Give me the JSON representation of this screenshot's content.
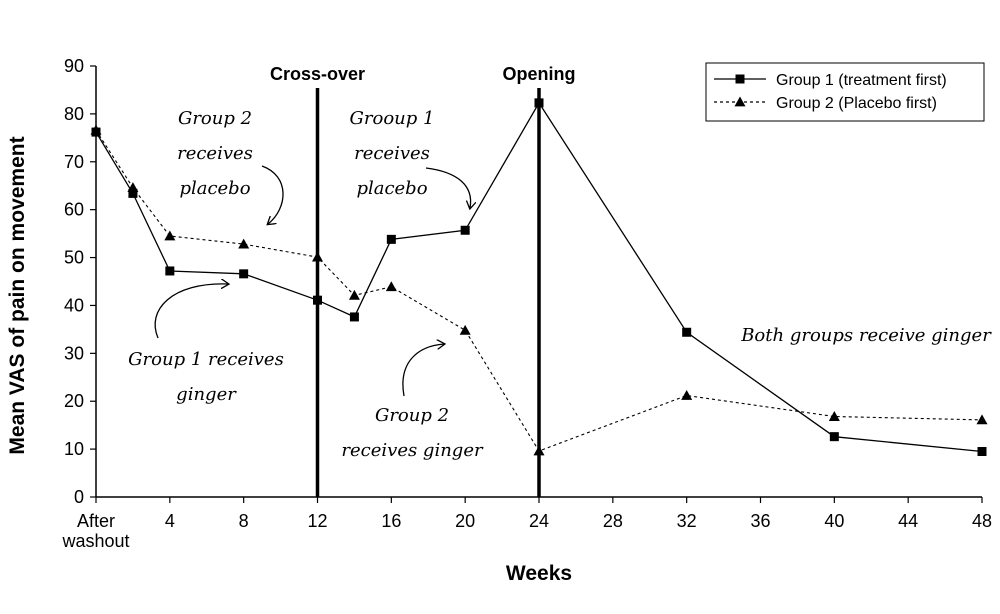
{
  "chart_data": {
    "type": "line",
    "title": "",
    "xlabel": "Weeks",
    "ylabel": "Mean VAS of pain on movement",
    "ylim": [
      0,
      90
    ],
    "yticks": [
      0,
      10,
      20,
      30,
      40,
      50,
      60,
      70,
      80,
      90
    ],
    "xlim": [
      0,
      48
    ],
    "xticks": [
      {
        "value": 0,
        "label": [
          "After",
          "washout"
        ]
      },
      {
        "value": 4,
        "label": [
          "4"
        ]
      },
      {
        "value": 8,
        "label": [
          "8"
        ]
      },
      {
        "value": 12,
        "label": [
          "12"
        ]
      },
      {
        "value": 16,
        "label": [
          "16"
        ]
      },
      {
        "value": 20,
        "label": [
          "20"
        ]
      },
      {
        "value": 24,
        "label": [
          "24"
        ]
      },
      {
        "value": 28,
        "label": [
          "28"
        ]
      },
      {
        "value": 32,
        "label": [
          "32"
        ]
      },
      {
        "value": 36,
        "label": [
          "36"
        ]
      },
      {
        "value": 40,
        "label": [
          "40"
        ]
      },
      {
        "value": 44,
        "label": [
          "44"
        ]
      },
      {
        "value": 48,
        "label": [
          "48"
        ]
      }
    ],
    "series": [
      {
        "name": "Group 1 (treatment first)",
        "marker": "square",
        "line": "solid",
        "x": [
          0,
          2,
          4,
          8,
          12,
          14,
          16,
          20,
          24,
          32,
          40,
          48
        ],
        "y": [
          76.2,
          63.4,
          47.2,
          46.6,
          41.1,
          37.6,
          53.8,
          55.7,
          82.3,
          34.4,
          12.6,
          9.5
        ]
      },
      {
        "name": "Group 2 (Placebo first)",
        "marker": "triangle",
        "line": "dotted",
        "x": [
          0,
          2,
          4,
          8,
          12,
          14,
          16,
          20,
          24,
          32,
          40,
          48
        ],
        "y": [
          76.6,
          64.6,
          54.5,
          52.8,
          50.1,
          42.1,
          43.9,
          34.8,
          9.6,
          21.2,
          16.8,
          16.1
        ]
      }
    ],
    "vertical_lines": [
      {
        "x": 12,
        "label": "Cross-over"
      },
      {
        "x": 24,
        "label": "Opening"
      }
    ],
    "legend_position": "top-right",
    "annotations": [
      {
        "id": "g2-placebo",
        "lines": [
          "Group 2",
          "receives",
          "placebo"
        ]
      },
      {
        "id": "g1-placebo",
        "lines": [
          "Grooup 1",
          "receives",
          "placebo"
        ]
      },
      {
        "id": "g1-ginger",
        "lines": [
          "Group 1 receives",
          "ginger"
        ]
      },
      {
        "id": "g2-ginger",
        "lines": [
          "Group 2",
          "receives ginger"
        ]
      },
      {
        "id": "both-ginger",
        "lines": [
          "Both groups receive ginger"
        ]
      }
    ]
  }
}
